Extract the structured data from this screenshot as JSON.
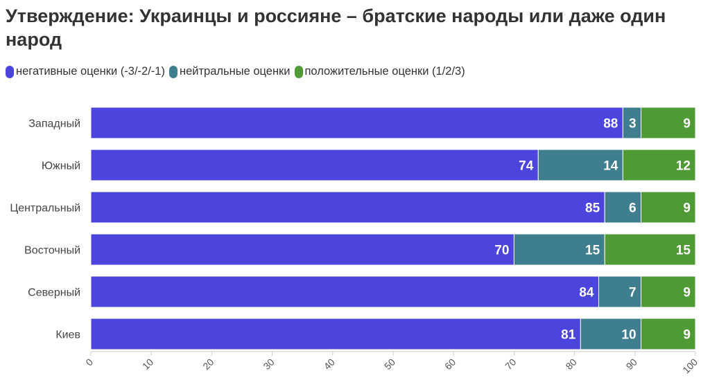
{
  "chart_data": {
    "type": "bar",
    "orientation": "horizontal",
    "stacked": true,
    "title": "Утверждение: Украинцы и россияне – братские народы или даже один народ",
    "categories": [
      "Западный",
      "Южный",
      "Центральный",
      "Восточный",
      "Северный",
      "Киев"
    ],
    "series": [
      {
        "name": "негативные оценки (-3/-2/-1)",
        "color": "#4b44dd",
        "values": [
          88,
          74,
          85,
          70,
          84,
          81
        ]
      },
      {
        "name": "нейтральные оценки",
        "color": "#3f7e8f",
        "values": [
          3,
          14,
          6,
          15,
          7,
          10
        ]
      },
      {
        "name": "положительные оценки (1/2/3)",
        "color": "#4f9a34",
        "values": [
          9,
          12,
          9,
          15,
          9,
          9
        ]
      }
    ],
    "xlim": [
      0,
      100
    ],
    "xticks": [
      "0",
      "10",
      "20",
      "30",
      "40",
      "50",
      "60",
      "70",
      "80",
      "90",
      "100"
    ],
    "legend_position": "top-left",
    "grid": false
  }
}
